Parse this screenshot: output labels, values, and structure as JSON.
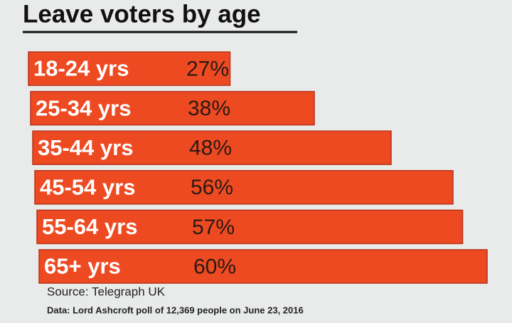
{
  "chart_data": {
    "type": "bar",
    "orientation": "horizontal",
    "title": "Leave voters by age",
    "categories": [
      "18-24 yrs",
      "25-34 yrs",
      "35-44 yrs",
      "45-54 yrs",
      "55-64 yrs",
      "65+ yrs"
    ],
    "values": [
      27,
      38,
      48,
      56,
      57,
      60
    ],
    "value_labels": [
      "27%",
      "38%",
      "48%",
      "56%",
      "57%",
      "60%"
    ],
    "color": "#ee4a22",
    "source": "Source: Telegraph UK",
    "note": "Data: Lord Ashcroft poll of 12,369 people on June 23, 2016"
  }
}
